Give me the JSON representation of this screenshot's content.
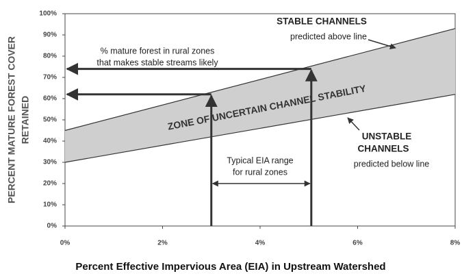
{
  "chart_data": {
    "type": "band",
    "y_title": [
      "PERCENT MATURE FOREST COVER",
      "RETAINED"
    ],
    "x_title": "Percent Effective Impervious Area (EIA) in Upstream Watershed",
    "xlim": [
      0,
      8
    ],
    "ylim": [
      0,
      100
    ],
    "xticks": [
      {
        "value": 0,
        "label": "0%"
      },
      {
        "value": 2,
        "label": "2%"
      },
      {
        "value": 4,
        "label": "4%"
      },
      {
        "value": 6,
        "label": "6%"
      },
      {
        "value": 8,
        "label": "8%"
      }
    ],
    "yticks": [
      {
        "value": 0,
        "label": "0%"
      },
      {
        "value": 10,
        "label": "10%"
      },
      {
        "value": 20,
        "label": "20%"
      },
      {
        "value": 30,
        "label": "30%"
      },
      {
        "value": 40,
        "label": "40%"
      },
      {
        "value": 50,
        "label": "50%"
      },
      {
        "value": 60,
        "label": "60%"
      },
      {
        "value": 70,
        "label": "70%"
      },
      {
        "value": 80,
        "label": "80%"
      },
      {
        "value": 90,
        "label": "90%"
      },
      {
        "value": 100,
        "label": "100%"
      }
    ],
    "upper": {
      "x": [
        0,
        8
      ],
      "values": [
        45,
        93
      ]
    },
    "lower": {
      "x": [
        0,
        8
      ],
      "values": [
        30,
        62
      ]
    },
    "band_color": "#cfcfcf",
    "eia_range": [
      3,
      5.05
    ],
    "forest_levels": [
      62,
      74
    ],
    "annotations": {
      "stable": [
        "STABLE CHANNELS",
        "predicted above line"
      ],
      "zone": "ZONE OF UNCERTAIN CHANNEL STABILITY",
      "unstable": [
        "UNSTABLE",
        "CHANNELS",
        "predicted below line"
      ],
      "forest": [
        "% mature forest in rural zones",
        "that makes stable streams likely"
      ],
      "eia": [
        "Typical EIA range",
        "for rural zones"
      ]
    }
  }
}
